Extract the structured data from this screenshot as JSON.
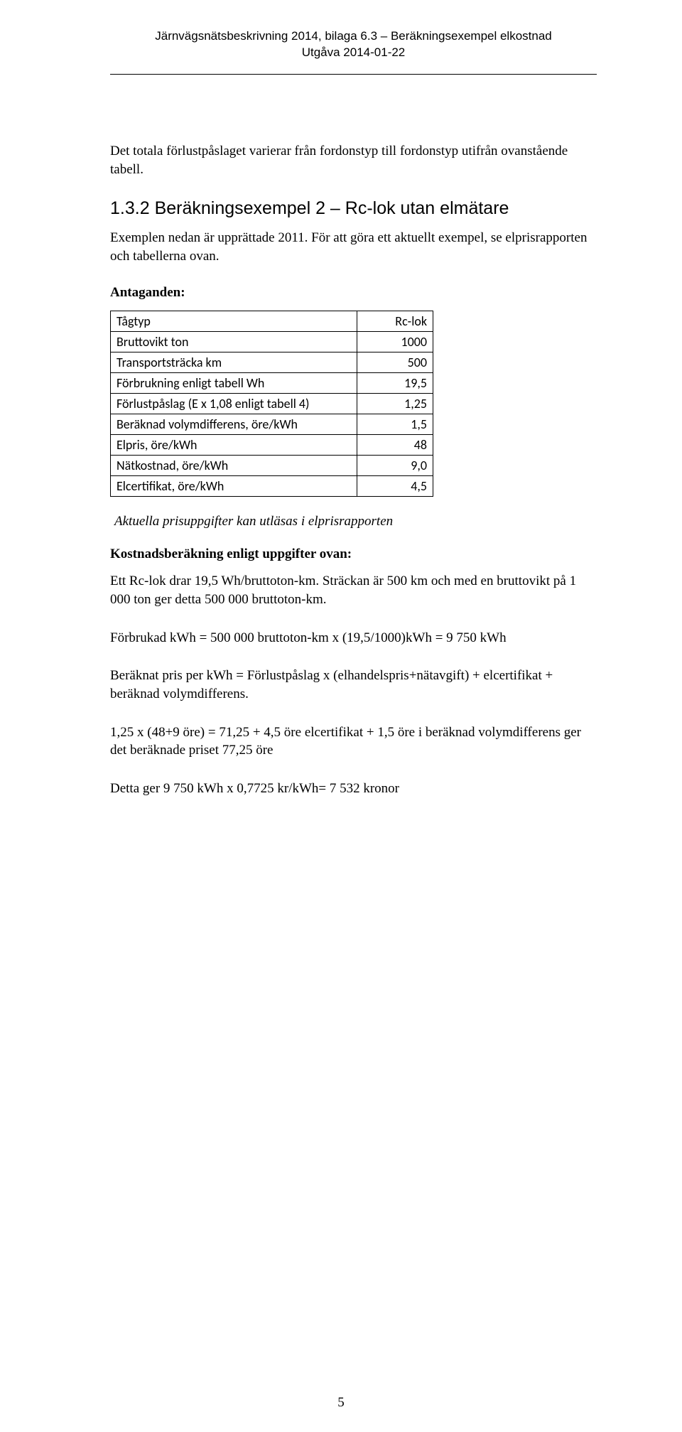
{
  "header": {
    "line1": "Järnvägsnätsbeskrivning 2014, bilaga 6.3 – Beräkningsexempel elkostnad",
    "line2": "Utgåva 2014-01-22"
  },
  "intro_para": "Det totala förlustpåslaget varierar från fordonstyp till fordonstyp utifrån ovanstående tabell.",
  "section": {
    "number": "1.3.2",
    "title": "Beräkningsexempel 2 – Rc-lok utan elmätare"
  },
  "example_para": "Exemplen nedan är upprättade 2011. För att göra ett aktuellt exempel, se elprisrapporten och tabellerna ovan.",
  "assumptions_label": "Antaganden:",
  "table": {
    "rows": [
      {
        "label": "Tågtyp",
        "value": "Rc-lok"
      },
      {
        "label": "Bruttovikt ton",
        "value": "1000"
      },
      {
        "label": "Transportsträcka km",
        "value": "500"
      },
      {
        "label": "Förbrukning enligt tabell Wh",
        "value": "19,5"
      },
      {
        "label": "Förlustpåslag (E x 1,08 enligt tabell 4)",
        "value": "1,25"
      },
      {
        "label": "Beräknad volymdifferens, öre/kWh",
        "value": "1,5"
      },
      {
        "label": "Elpris, öre/kWh",
        "value": "48"
      },
      {
        "label": "Nätkostnad, öre/kWh",
        "value": "9,0"
      },
      {
        "label": "Elcertifikat, öre/kWh",
        "value": "4,5"
      }
    ]
  },
  "italic_note": "Aktuella prisuppgifter kan utläsas i elprisrapporten",
  "cost_calc_heading": "Kostnadsberäkning enligt uppgifter ovan:",
  "para1": "Ett Rc-lok drar 19,5 Wh/bruttoton-km. Sträckan är 500 km och med en bruttovikt på 1 000 ton ger detta 500 000 bruttoton-km.",
  "para2": "Förbrukad kWh = 500 000 bruttoton-km x (19,5/1000)kWh = 9 750 kWh",
  "para3": "Beräknat pris per kWh = Förlustpåslag x (elhandelspris+nätavgift) + elcertifikat + beräknad volymdifferens.",
  "para4": "1,25 x (48+9 öre) = 71,25 + 4,5 öre elcertifikat + 1,5 öre i beräknad volymdifferens ger det beräknade priset 77,25 öre",
  "para5": "Detta ger 9 750 kWh x 0,7725 kr/kWh= 7 532 kronor",
  "page_number": "5"
}
